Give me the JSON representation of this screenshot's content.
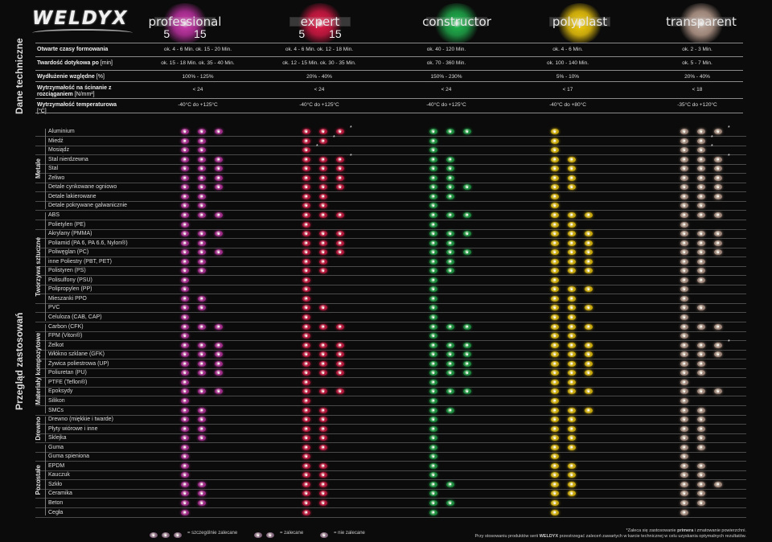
{
  "logo": "WELDYX",
  "products": [
    {
      "name": "professional",
      "nums": "5 15",
      "color": "#9c2a86",
      "glow": "#c33aa5"
    },
    {
      "name": "expert",
      "nums": "5 15",
      "color": "#b0163a",
      "glow": "#d21b44"
    },
    {
      "name": "constructor",
      "nums": "",
      "color": "#1c8b3e",
      "glow": "#1fae4c"
    },
    {
      "name": "polyplast",
      "nums": "",
      "color": "#c7a60c",
      "glow": "#e6c30f"
    },
    {
      "name": "transparent",
      "nums": "",
      "color": "#9c8478",
      "glow": "#b39d92"
    }
  ],
  "sections": {
    "tech": "Dane techniczne",
    "apps": "Przegląd zastosowań"
  },
  "tech_rows": [
    {
      "label": "Otwarte czasy formowania",
      "unit": "",
      "values": [
        "ok. 4 - 6 Min.      ok. 15 - 20 Min.",
        "ok. 4 - 6 Min.      ok. 12 - 18 Min.",
        "ok. 40 - 120 Min.",
        "ok. 4 - 6 Min.",
        "ok. 2 - 3 Min."
      ]
    },
    {
      "label": "Twardość dotykowa po",
      "unit": " [min]",
      "values": [
        "ok. 15 - 18 Min.   ok. 35 - 40 Min.",
        "ok. 12 - 15 Min.   ok. 30 - 35 Min.",
        "ok. 70 - 360 Min.",
        "ok. 100 - 140 Min.",
        "ok. 5 - 7 Min."
      ]
    },
    {
      "label": "Wydłużenie względne",
      "unit": " [%]",
      "values": [
        "100% - 125%",
        "20% - 40%",
        "150% - 230%",
        "5% - 10%",
        "20% - 40%"
      ]
    },
    {
      "label": "Wytrzymałość na ścinanie z rozciąganiem",
      "unit": " [N/mm²]",
      "values": [
        "< 24",
        "< 24",
        "< 24",
        "< 17",
        "< 18"
      ]
    },
    {
      "label": "Wytrzymałość temperaturowa",
      "unit": " [°C]",
      "values": [
        "-40°C do +125°C",
        "-40°C do +125°C",
        "-40°C do +125°C",
        "-40°C do +80°C",
        "-35°C do +120°C"
      ]
    }
  ],
  "groups": [
    {
      "name": "Metale",
      "first": 0,
      "last": 8
    },
    {
      "name": "Tworzywa sztuczne",
      "first": 9,
      "last": 20
    },
    {
      "name": "Materiały kompozytowe",
      "first": 21,
      "last": 30
    },
    {
      "name": "Drewno",
      "first": 31,
      "last": 33
    },
    {
      "name": "Pozostałe",
      "first": 34,
      "last": 41
    }
  ],
  "materials": [
    {
      "name": "Aluminium",
      "r": [
        3,
        3,
        3,
        1,
        3
      ],
      "s": [
        0,
        1,
        0,
        0,
        1
      ]
    },
    {
      "name": "Miedź",
      "r": [
        2,
        2,
        1,
        1,
        2
      ],
      "s": [
        0,
        1,
        0,
        0,
        1
      ]
    },
    {
      "name": "Mosiądz",
      "r": [
        2,
        1,
        1,
        1,
        2
      ],
      "s": [
        0,
        1,
        0,
        0,
        1
      ]
    },
    {
      "name": "Stal nierdzewna",
      "r": [
        3,
        3,
        2,
        2,
        3
      ],
      "s": [
        0,
        1,
        0,
        0,
        1
      ]
    },
    {
      "name": "Stal",
      "r": [
        3,
        3,
        2,
        2,
        3
      ],
      "s": [
        0,
        0,
        0,
        0,
        0
      ]
    },
    {
      "name": "Żeliwo",
      "r": [
        3,
        3,
        2,
        2,
        3
      ],
      "s": [
        0,
        0,
        0,
        0,
        0
      ]
    },
    {
      "name": "Detale cynkowane ogniowo",
      "r": [
        3,
        3,
        3,
        2,
        3
      ],
      "s": [
        0,
        0,
        0,
        0,
        0
      ]
    },
    {
      "name": "Detale lakierowane",
      "r": [
        2,
        2,
        2,
        1,
        3
      ],
      "s": [
        0,
        0,
        0,
        0,
        0
      ]
    },
    {
      "name": "Detale pokrywane galwanicznie",
      "r": [
        2,
        2,
        1,
        1,
        2
      ],
      "s": [
        0,
        0,
        0,
        0,
        0
      ]
    },
    {
      "name": "ABS",
      "r": [
        3,
        3,
        3,
        3,
        3
      ],
      "s": [
        0,
        0,
        0,
        0,
        0
      ]
    },
    {
      "name": "Polietylen (PE)",
      "r": [
        1,
        1,
        1,
        2,
        1
      ],
      "s": [
        0,
        0,
        0,
        0,
        0
      ]
    },
    {
      "name": "Akrylany (PMMA)",
      "r": [
        3,
        3,
        3,
        3,
        3
      ],
      "s": [
        0,
        0,
        0,
        0,
        0
      ]
    },
    {
      "name": "Poliamid (PA 6, PA 6.6, Nylon®)",
      "r": [
        2,
        3,
        2,
        3,
        3
      ],
      "s": [
        0,
        0,
        0,
        0,
        0
      ]
    },
    {
      "name": "Poliwęglan (PC)",
      "r": [
        3,
        3,
        3,
        3,
        3
      ],
      "s": [
        0,
        0,
        0,
        0,
        0
      ]
    },
    {
      "name": "inne Poliestry (PBT, PET)",
      "r": [
        2,
        2,
        2,
        3,
        2
      ],
      "s": [
        0,
        0,
        0,
        0,
        0
      ]
    },
    {
      "name": "Polistyren (PS)",
      "r": [
        2,
        2,
        2,
        3,
        2
      ],
      "s": [
        0,
        0,
        0,
        0,
        0
      ]
    },
    {
      "name": "Polisulfony (PSU)",
      "r": [
        1,
        1,
        1,
        1,
        2
      ],
      "s": [
        0,
        0,
        0,
        0,
        0
      ]
    },
    {
      "name": "Polipropylen (PP)",
      "r": [
        1,
        1,
        1,
        3,
        1
      ],
      "s": [
        0,
        0,
        0,
        0,
        0
      ]
    },
    {
      "name": "Mieszanki PPO",
      "r": [
        2,
        1,
        1,
        2,
        1
      ],
      "s": [
        0,
        0,
        0,
        0,
        0
      ]
    },
    {
      "name": "PVC",
      "r": [
        2,
        2,
        1,
        3,
        2
      ],
      "s": [
        0,
        0,
        0,
        0,
        0
      ]
    },
    {
      "name": "Celuloza (CAB, CAP)",
      "r": [
        1,
        1,
        1,
        2,
        1
      ],
      "s": [
        0,
        0,
        0,
        0,
        0
      ]
    },
    {
      "name": "Carbon (CFK)",
      "r": [
        3,
        3,
        3,
        3,
        3
      ],
      "s": [
        0,
        0,
        0,
        0,
        0
      ]
    },
    {
      "name": "FPM (Viton®)",
      "r": [
        1,
        1,
        1,
        2,
        1
      ],
      "s": [
        0,
        0,
        0,
        0,
        0
      ]
    },
    {
      "name": "Żelkot",
      "r": [
        3,
        3,
        3,
        3,
        3
      ],
      "s": [
        0,
        0,
        0,
        0,
        1
      ]
    },
    {
      "name": "Włókno szklane (GFK)",
      "r": [
        3,
        3,
        3,
        3,
        3
      ],
      "s": [
        0,
        0,
        0,
        0,
        0
      ]
    },
    {
      "name": "Żywica poliestrowa (UP)",
      "r": [
        3,
        3,
        3,
        3,
        2
      ],
      "s": [
        0,
        0,
        0,
        0,
        0
      ]
    },
    {
      "name": "Poliuretan (PU)",
      "r": [
        3,
        3,
        3,
        3,
        2
      ],
      "s": [
        0,
        0,
        0,
        0,
        0
      ]
    },
    {
      "name": "PTFE (Teflon®)",
      "r": [
        1,
        1,
        1,
        2,
        1
      ],
      "s": [
        0,
        0,
        0,
        0,
        0
      ]
    },
    {
      "name": "Epoksydy",
      "r": [
        3,
        3,
        3,
        3,
        3
      ],
      "s": [
        0,
        0,
        0,
        0,
        0
      ]
    },
    {
      "name": "Silikon",
      "r": [
        1,
        1,
        1,
        1,
        1
      ],
      "s": [
        0,
        0,
        0,
        0,
        0
      ]
    },
    {
      "name": "SMCs",
      "r": [
        2,
        2,
        2,
        3,
        2
      ],
      "s": [
        0,
        0,
        0,
        0,
        0
      ]
    },
    {
      "name": "Drewno (miękkie i twarde)",
      "r": [
        2,
        2,
        1,
        2,
        2
      ],
      "s": [
        0,
        0,
        0,
        0,
        0
      ]
    },
    {
      "name": "Płyty wiórowe i inne",
      "r": [
        2,
        2,
        1,
        2,
        2
      ],
      "s": [
        0,
        0,
        0,
        0,
        0
      ]
    },
    {
      "name": "Sklejka",
      "r": [
        2,
        2,
        1,
        2,
        2
      ],
      "s": [
        0,
        0,
        0,
        0,
        0
      ]
    },
    {
      "name": "Guma",
      "r": [
        1,
        2,
        1,
        2,
        2
      ],
      "s": [
        0,
        0,
        0,
        0,
        0
      ]
    },
    {
      "name": "Guma spieniona",
      "r": [
        1,
        1,
        1,
        1,
        1
      ],
      "s": [
        0,
        0,
        0,
        0,
        0
      ]
    },
    {
      "name": "EPDM",
      "r": [
        1,
        2,
        1,
        2,
        2
      ],
      "s": [
        0,
        0,
        0,
        0,
        0
      ]
    },
    {
      "name": "Kauczuk",
      "r": [
        1,
        2,
        1,
        2,
        2
      ],
      "s": [
        0,
        0,
        0,
        0,
        0
      ]
    },
    {
      "name": "Szkło",
      "r": [
        2,
        2,
        2,
        2,
        3
      ],
      "s": [
        0,
        0,
        0,
        0,
        0
      ]
    },
    {
      "name": "Ceramika",
      "r": [
        2,
        2,
        1,
        2,
        2
      ],
      "s": [
        0,
        0,
        0,
        0,
        0
      ]
    },
    {
      "name": "Beton",
      "r": [
        2,
        2,
        2,
        1,
        2
      ],
      "s": [
        0,
        0,
        0,
        0,
        0
      ]
    },
    {
      "name": "Cegła",
      "r": [
        1,
        1,
        1,
        1,
        1
      ],
      "s": [
        0,
        0,
        0,
        0,
        0
      ]
    }
  ],
  "legend": [
    {
      "count": 3,
      "text": "= szczególnie zalecane"
    },
    {
      "count": 2,
      "text": "= zalecane"
    },
    {
      "count": 1,
      "text": "= nie zalecane"
    }
  ],
  "footnote1_pre": "*Zaleca się zastosowanie ",
  "footnote1_bold": "primera",
  "footnote1_post": " i zmatowanie powierzchni.",
  "footnote2_pre": "Przy stosowaniu produktów serii ",
  "footnote2_bold": "WELDYX",
  "footnote2_post": " przestrzegać zaleceń zawartych w karcie technicznej w celu uzyskania optymalnych rezultatów."
}
